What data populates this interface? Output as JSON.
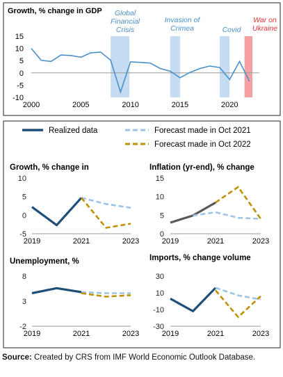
{
  "charts": [
    {
      "type": "line",
      "title": "Growth, % change in GDP",
      "x_ticks": [
        2000,
        2005,
        2010,
        2015,
        2020
      ],
      "y_ticks": [
        -10,
        -5,
        0,
        5,
        10,
        15
      ],
      "xlim": [
        2000,
        2023
      ],
      "ylim": [
        -10,
        15
      ],
      "line_color": "#4a90c9",
      "x": [
        2000,
        2001,
        2002,
        2003,
        2004,
        2005,
        2006,
        2007,
        2008,
        2009,
        2010,
        2011,
        2012,
        2013,
        2014,
        2015,
        2016,
        2017,
        2018,
        2019,
        2020,
        2021,
        2022
      ],
      "values": [
        10,
        5.1,
        4.7,
        7.3,
        7.1,
        6.4,
        8.2,
        8.5,
        5.2,
        -7.8,
        4.5,
        4.3,
        4.0,
        1.8,
        0.7,
        -2.0,
        0.2,
        1.8,
        2.8,
        2.2,
        -2.7,
        4.7,
        -3.4
      ],
      "shaded_periods": [
        {
          "label": "Global Financial Crisis",
          "start": 2008,
          "end": 2009.9,
          "color": "#c6dcf2",
          "text_color": "#4a90c9"
        },
        {
          "label": "Invasion of Crimea",
          "start": 2014,
          "end": 2015,
          "color": "#c6dcf2",
          "text_color": "#4a90c9"
        },
        {
          "label": "Covid",
          "start": 2019,
          "end": 2020,
          "color": "#c6dcf2",
          "text_color": "#4a90c9"
        },
        {
          "label": "War on Ukraine",
          "start": 2021.5,
          "end": 2022.3,
          "color": "#f4a0a5",
          "text_color": "#e0303a"
        }
      ]
    }
  ],
  "legend": {
    "realized": {
      "label": "Realized data",
      "color": "#1f4e79"
    },
    "oct2021": {
      "label": "Forecast made in Oct 2021",
      "color": "#9dc3e6"
    },
    "oct2022": {
      "label": "Forecast made in Oct 2022",
      "color": "#bf9000"
    }
  },
  "chart_data": [
    {
      "type": "line",
      "title": "Growth, % change in",
      "x_ticks": [
        "2019",
        "2021",
        "2023"
      ],
      "y_ticks": [
        -5,
        0,
        5,
        10
      ],
      "ylim": [
        -5,
        10
      ],
      "series": [
        {
          "name": "Realized data",
          "x": [
            2019,
            2020,
            2021
          ],
          "values": [
            2.2,
            -2.7,
            4.7
          ],
          "color": "#1f4e79",
          "dash": false
        },
        {
          "name": "Forecast made in Oct 2021",
          "x": [
            2021,
            2022,
            2023
          ],
          "values": [
            4.7,
            3.0,
            2.0
          ],
          "color": "#9dc3e6",
          "dash": true
        },
        {
          "name": "Forecast made in Oct 2022",
          "x": [
            2021,
            2022,
            2023
          ],
          "values": [
            4.7,
            -3.4,
            -2.3
          ],
          "color": "#bf9000",
          "dash": true
        }
      ]
    },
    {
      "type": "line",
      "title": "Inflation (yr-end), % change",
      "x_ticks": [
        "2019",
        "2021",
        "2023"
      ],
      "y_ticks": [
        0,
        5,
        10,
        15
      ],
      "ylim": [
        0,
        15
      ],
      "series": [
        {
          "name": "Realized data",
          "x": [
            2019,
            2020,
            2021
          ],
          "values": [
            3.0,
            4.9,
            8.4
          ],
          "color": "#595959",
          "dash": false
        },
        {
          "name": "Forecast made in Oct 2021",
          "x": [
            2020,
            2021,
            2022,
            2023
          ],
          "values": [
            4.9,
            5.8,
            4.3,
            4.0
          ],
          "color": "#9dc3e6",
          "dash": true
        },
        {
          "name": "Forecast made in Oct 2022",
          "x": [
            2021,
            2022,
            2023
          ],
          "values": [
            8.4,
            12.6,
            4.0
          ],
          "color": "#bf9000",
          "dash": true
        }
      ]
    },
    {
      "type": "line",
      "title": "Unemployment, %",
      "x_ticks": [
        "2019",
        "2021",
        "2023"
      ],
      "y_ticks": [
        -2,
        3,
        8
      ],
      "ylim": [
        -2,
        8
      ],
      "series": [
        {
          "name": "Realized data",
          "x": [
            2019,
            2020,
            2021
          ],
          "values": [
            4.6,
            5.6,
            4.8
          ],
          "color": "#1f4e79",
          "dash": false
        },
        {
          "name": "Forecast made in Oct 2021",
          "x": [
            2021,
            2022,
            2023
          ],
          "values": [
            4.8,
            4.6,
            4.6
          ],
          "color": "#9dc3e6",
          "dash": true
        },
        {
          "name": "Forecast made in Oct 2022",
          "x": [
            2021,
            2022,
            2023
          ],
          "values": [
            4.6,
            3.9,
            4.2
          ],
          "color": "#bf9000",
          "dash": true
        }
      ]
    },
    {
      "type": "line",
      "title": "Imports, % change volume",
      "x_ticks": [
        "2019",
        "2021",
        "2023"
      ],
      "y_ticks": [
        -30,
        -10,
        10,
        30
      ],
      "ylim": [
        -30,
        30
      ],
      "series": [
        {
          "name": "Realized data",
          "x": [
            2019,
            2020,
            2021
          ],
          "values": [
            3.0,
            -12.0,
            16.0
          ],
          "color": "#1f4e79",
          "dash": false
        },
        {
          "name": "Forecast made in Oct 2021",
          "x": [
            2021,
            2022,
            2023
          ],
          "values": [
            16.0,
            7.0,
            2.0
          ],
          "color": "#9dc3e6",
          "dash": true
        },
        {
          "name": "Forecast made in Oct 2022",
          "x": [
            2021,
            2022,
            2023
          ],
          "values": [
            13.0,
            -19.0,
            6.0
          ],
          "color": "#bf9000",
          "dash": true
        }
      ]
    }
  ],
  "source": {
    "label": "Source:",
    "text": " Created by CRS from IMF World Economic Outlook Database."
  }
}
